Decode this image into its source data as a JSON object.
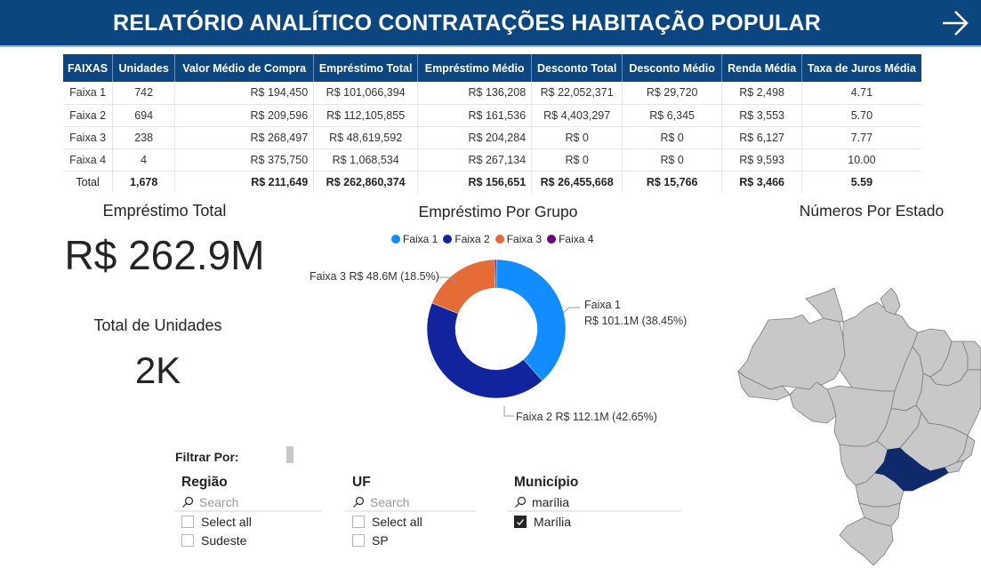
{
  "header": {
    "title": "RELATÓRIO ANALÍTICO CONTRATAÇÕES HABITAÇÃO POPULAR",
    "nav_icon": "arrow-right-icon"
  },
  "table": {
    "columns": [
      "FAIXAS",
      "Unidades",
      "Valor Médio de Compra",
      "Empréstimo Total",
      "Empréstimo Médio",
      "Desconto Total",
      "Desconto Médio",
      "Renda Média",
      "Taxa de Juros Média"
    ],
    "rows": [
      [
        "Faixa 1",
        "742",
        "R$ 194,450",
        "R$ 101,066,394",
        "R$ 136,208",
        "R$ 22,052,371",
        "R$ 29,720",
        "R$ 2,498",
        "4.71"
      ],
      [
        "Faixa 2",
        "694",
        "R$ 209,596",
        "R$ 112,105,855",
        "R$ 161,536",
        "R$ 4,403,297",
        "R$ 6,345",
        "R$ 3,553",
        "5.70"
      ],
      [
        "Faixa 3",
        "238",
        "R$ 268,497",
        "R$ 48,619,592",
        "R$ 204,284",
        "R$ 0",
        "R$ 0",
        "R$ 6,127",
        "7.77"
      ],
      [
        "Faixa 4",
        "4",
        "R$ 375,750",
        "R$ 1,068,534",
        "R$ 267,134",
        "R$ 0",
        "R$ 0",
        "R$ 9,593",
        "10.00"
      ]
    ],
    "total": [
      "Total",
      "1,678",
      "R$ 211,649",
      "R$ 262,860,374",
      "R$ 156,651",
      "R$ 26,455,668",
      "R$ 15,766",
      "R$ 3,466",
      "5.59"
    ]
  },
  "cards": {
    "loan_total": {
      "title": "Empréstimo Total",
      "value": "R$ 262.9M"
    },
    "units_total": {
      "title": "Total de Unidades",
      "value": "2K"
    }
  },
  "chart_data": {
    "type": "pie",
    "subtype": "donut",
    "title": "Empréstimo Por Grupo",
    "legend_position": "top-center",
    "categories": [
      "Faixa 1",
      "Faixa 2",
      "Faixa 3",
      "Faixa 4"
    ],
    "values": [
      101.07,
      112.11,
      48.62,
      1.07
    ],
    "unit": "R$ M",
    "percentages": [
      38.45,
      42.65,
      18.5,
      0.41
    ],
    "colors": [
      "#118dff",
      "#12239e",
      "#e66c37",
      "#6b007b"
    ],
    "data_labels": [
      {
        "category": "Faixa 1",
        "line1": "Faixa 1",
        "line2": "R$ 101.1M (38.45%)"
      },
      {
        "category": "Faixa 2",
        "line1": "Faixa 2 R$ 112.1M (42.65%)"
      },
      {
        "category": "Faixa 3",
        "line1": "Faixa 3 R$ 48.6M (18.5%)"
      }
    ]
  },
  "map": {
    "title": "Números Por Estado",
    "highlighted_state": "SP",
    "highlight_color": "#0f2a6b",
    "base_color": "#c8c8c8"
  },
  "filters": {
    "title": "Filtrar Por:",
    "slicers": [
      {
        "title": "Região",
        "search_placeholder": "Search",
        "search_value": "",
        "items": [
          {
            "label": "Select all",
            "checked": false
          },
          {
            "label": "Sudeste",
            "checked": false
          }
        ]
      },
      {
        "title": "UF",
        "search_placeholder": "Search",
        "search_value": "",
        "items": [
          {
            "label": "Select all",
            "checked": false
          },
          {
            "label": "SP",
            "checked": false
          }
        ]
      },
      {
        "title": "Município",
        "search_placeholder": "Search",
        "search_value": "marília",
        "items": [
          {
            "label": "Marília",
            "checked": true
          }
        ]
      }
    ]
  }
}
